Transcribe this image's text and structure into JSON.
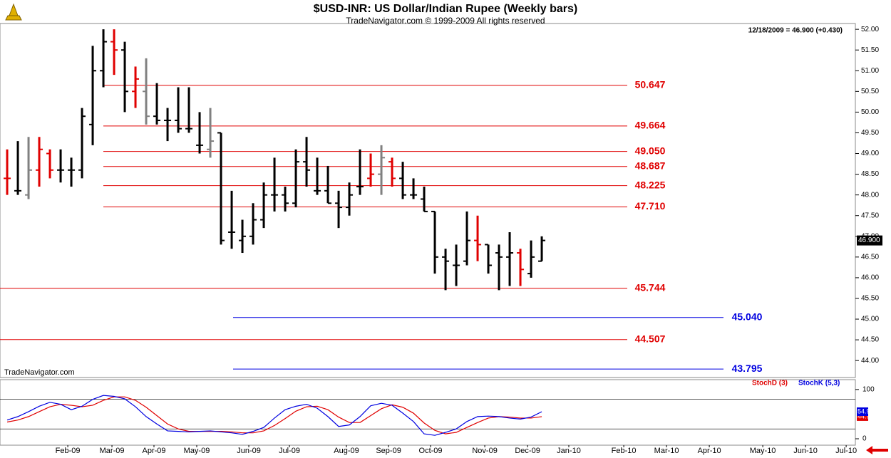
{
  "chart_data": [
    {
      "type": "ohlc",
      "title": "$USD-INR:  US Dollar/Indian Rupee  (Weekly bars)",
      "subtitle": "TradeNavigator.com © 1999-2009 All rights reserved",
      "info": "12/18/2009 = 46.900 (+0.430)",
      "watermark": "TradeNavigator.com",
      "open": [
        48.4,
        48.1,
        48.0,
        48.6,
        49.0,
        48.6,
        48.6,
        48.6,
        49.7,
        51.0,
        51.7,
        51.5,
        50.5,
        50.5,
        49.9,
        49.8,
        49.8,
        49.6,
        49.2,
        49.1,
        49.5,
        47.1,
        46.9,
        47.0,
        47.4,
        48.0,
        48.0,
        47.8,
        48.8,
        48.1,
        48.1,
        47.8,
        47.7,
        48.2,
        48.4,
        48.5,
        48.8,
        48.4,
        48.0,
        47.9,
        47.6,
        46.5,
        46.3,
        46.4,
        46.9,
        46.8,
        46.6,
        46.5,
        46.6,
        46.1,
        46.4
      ],
      "high": [
        49.1,
        49.3,
        49.4,
        49.4,
        49.1,
        49.1,
        48.9,
        50.1,
        51.6,
        52.0,
        52.0,
        51.7,
        51.1,
        51.3,
        50.7,
        50.1,
        50.6,
        50.6,
        50.0,
        50.1,
        49.5,
        48.1,
        47.4,
        47.8,
        48.3,
        48.9,
        48.2,
        49.1,
        49.4,
        48.9,
        48.7,
        48.1,
        48.3,
        49.1,
        49.0,
        49.2,
        48.9,
        48.8,
        48.4,
        48.2,
        47.6,
        46.7,
        46.8,
        47.6,
        47.5,
        46.8,
        46.8,
        47.1,
        46.7,
        46.9,
        47.0
      ],
      "low": [
        48.0,
        48.0,
        47.9,
        48.2,
        48.4,
        48.3,
        48.2,
        48.4,
        49.2,
        50.6,
        50.9,
        50.0,
        50.1,
        49.7,
        49.7,
        49.3,
        49.5,
        49.5,
        49.0,
        48.9,
        46.8,
        46.7,
        46.6,
        46.8,
        47.2,
        47.6,
        47.6,
        47.7,
        48.2,
        48.0,
        47.8,
        47.2,
        47.5,
        48.0,
        48.2,
        48.0,
        48.2,
        47.9,
        47.9,
        47.6,
        46.1,
        45.7,
        45.8,
        46.3,
        46.4,
        46.1,
        45.7,
        45.8,
        45.8,
        46.0,
        46.4
      ],
      "close": [
        48.4,
        48.1,
        48.6,
        49.1,
        48.6,
        48.6,
        48.6,
        49.9,
        51.0,
        51.7,
        51.5,
        50.5,
        50.8,
        49.9,
        49.8,
        49.8,
        49.6,
        49.6,
        49.2,
        49.3,
        46.9,
        47.1,
        47.0,
        47.4,
        48.0,
        48.0,
        47.8,
        48.8,
        48.6,
        48.1,
        47.8,
        47.7,
        48.0,
        48.2,
        48.5,
        48.9,
        48.4,
        48.0,
        48.0,
        47.6,
        46.5,
        46.4,
        46.3,
        46.9,
        46.8,
        46.3,
        46.5,
        46.6,
        46.2,
        46.5,
        46.9
      ],
      "bar_colors": [
        "#e00000",
        "#000000",
        "#808080",
        "#e00000",
        "#e00000",
        "#000000",
        "#000000",
        "#000000",
        "#000000",
        "#000000",
        "#e00000",
        "#000000",
        "#e00000",
        "#808080",
        "#000000",
        "#000000",
        "#000000",
        "#000000",
        "#000000",
        "#808080",
        "#000000",
        "#000000",
        "#000000",
        "#000000",
        "#000000",
        "#000000",
        "#000000",
        "#000000",
        "#000000",
        "#000000",
        "#000000",
        "#000000",
        "#000000",
        "#000000",
        "#e00000",
        "#808080",
        "#e00000",
        "#000000",
        "#000000",
        "#000000",
        "#000000",
        "#000000",
        "#000000",
        "#000000",
        "#e00000",
        "#000000",
        "#000000",
        "#000000",
        "#e00000",
        "#000000",
        "#000000"
      ],
      "ylim": [
        43.59,
        52.14
      ],
      "yticks": [
        {
          "value": 44,
          "label": "44.00"
        },
        {
          "value": 44.5,
          "label": "44.50"
        },
        {
          "value": 45,
          "label": "45.00"
        },
        {
          "value": 45.5,
          "label": "45.50"
        },
        {
          "value": 46,
          "label": "46.00"
        },
        {
          "value": 46.5,
          "label": "46.50"
        },
        {
          "value": 47,
          "label": "47.00"
        },
        {
          "value": 47.5,
          "label": "47.50"
        },
        {
          "value": 48,
          "label": "48.00"
        },
        {
          "value": 48.5,
          "label": "48.50"
        },
        {
          "value": 49,
          "label": "49.00"
        },
        {
          "value": 49.5,
          "label": "49.50"
        },
        {
          "value": 50,
          "label": "50.00"
        },
        {
          "value": 50.5,
          "label": "50.50"
        },
        {
          "value": 51,
          "label": "51.00"
        },
        {
          "value": 51.5,
          "label": "51.50"
        },
        {
          "value": 52,
          "label": "52.00"
        }
      ],
      "levels": [
        {
          "value": 50.647,
          "label": "50.647",
          "color": "#e00000"
        },
        {
          "value": 49.664,
          "label": "49.664",
          "color": "#e00000"
        },
        {
          "value": 49.05,
          "label": "49.050",
          "color": "#e00000"
        },
        {
          "value": 48.687,
          "label": "48.687",
          "color": "#e00000"
        },
        {
          "value": 48.225,
          "label": "48.225",
          "color": "#e00000"
        },
        {
          "value": 47.71,
          "label": "47.710",
          "color": "#e00000"
        },
        {
          "value": 45.744,
          "label": "45.744",
          "color": "#e00000"
        },
        {
          "value": 45.04,
          "label": "45.040",
          "color": "#0000e0"
        },
        {
          "value": 44.507,
          "label": "44.507",
          "color": "#e00000"
        },
        {
          "value": 43.795,
          "label": "43.795",
          "color": "#0000e0"
        }
      ],
      "last_price": {
        "value": 46.9,
        "label": "46.900"
      },
      "xlim": [
        -0.67,
        79.33
      ],
      "xticks": [
        {
          "value": 5.67,
          "label": "Feb-09"
        },
        {
          "value": 9.8,
          "label": "Mar-09"
        },
        {
          "value": 13.73,
          "label": "Apr-09"
        },
        {
          "value": 17.73,
          "label": "May-09"
        },
        {
          "value": 22.6,
          "label": "Jun-09"
        },
        {
          "value": 26.4,
          "label": "Jul-09"
        },
        {
          "value": 31.73,
          "label": "Aug-09"
        },
        {
          "value": 35.67,
          "label": "Sep-09"
        },
        {
          "value": 39.6,
          "label": "Oct-09"
        },
        {
          "value": 44.67,
          "label": "Nov-09"
        },
        {
          "value": 48.67,
          "label": "Dec-09"
        },
        {
          "value": 52.53,
          "label": "Jan-10"
        },
        {
          "value": 57.67,
          "label": "Feb-10"
        },
        {
          "value": 61.67,
          "label": "Mar-10"
        },
        {
          "value": 65.67,
          "label": "Apr-10"
        },
        {
          "value": 70.67,
          "label": "May-10"
        },
        {
          "value": 74.67,
          "label": "Jun-10"
        },
        {
          "value": 78.47,
          "label": "Jul-10"
        }
      ]
    },
    {
      "type": "line",
      "series": [
        {
          "name": "StochD (3)",
          "color": "#e00000",
          "values": [
            34,
            38,
            45,
            55,
            65,
            70,
            68,
            65,
            68,
            78,
            85,
            85,
            78,
            64,
            47,
            30,
            20,
            15,
            15,
            15,
            15,
            14,
            12,
            12,
            16,
            27,
            41,
            56,
            65,
            66,
            59,
            44,
            33,
            33,
            47,
            61,
            69,
            64,
            52,
            32,
            17,
            10,
            13,
            23,
            33,
            42,
            45,
            44,
            42,
            42,
            44.96
          ]
        },
        {
          "name": "StochK (5,3)",
          "color": "#0000e0",
          "values": [
            38,
            45,
            55,
            66,
            74,
            70,
            59,
            66,
            80,
            88,
            86,
            81,
            65,
            45,
            30,
            16,
            15,
            14,
            15,
            16,
            14,
            12,
            9,
            15,
            23,
            42,
            59,
            66,
            70,
            62,
            45,
            25,
            28,
            45,
            67,
            72,
            68,
            52,
            35,
            10,
            7,
            13,
            20,
            35,
            45,
            46,
            45,
            42,
            40,
            44,
            54.97
          ]
        }
      ],
      "ylim": [
        -13,
        120
      ],
      "yticks": [
        0,
        100
      ],
      "levels": [
        20,
        80
      ]
    }
  ]
}
